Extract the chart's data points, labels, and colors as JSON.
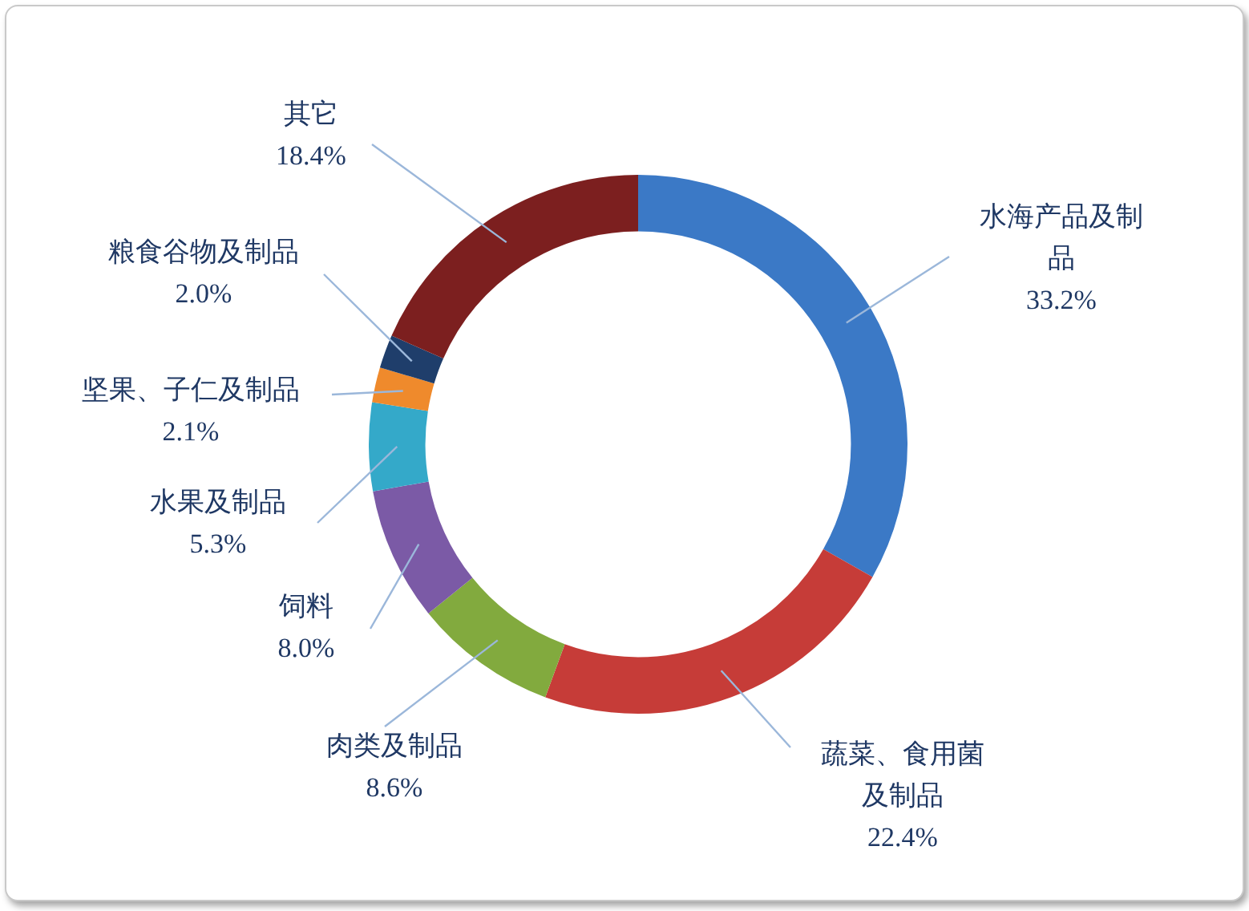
{
  "chart_data": {
    "type": "donut",
    "categories": [
      "水海产品及制品",
      "蔬菜、食用菌及制品",
      "肉类及制品",
      "饲料",
      "水果及制品",
      "坚果、子仁及制品",
      "粮食谷物及制品",
      "其它"
    ],
    "values": [
      33.2,
      22.4,
      8.6,
      8.0,
      5.3,
      2.1,
      2.0,
      18.4
    ],
    "colors": [
      "#3b79c6",
      "#c63c38",
      "#82aa3e",
      "#7b5aa6",
      "#34a9c9",
      "#ef8a2c",
      "#1f3e6b",
      "#7c1f1f"
    ],
    "value_labels": [
      "33.2%",
      "22.4%",
      "8.6%",
      "8.0%",
      "5.3%",
      "2.1%",
      "2.0%",
      "18.4%"
    ],
    "legend": false
  }
}
